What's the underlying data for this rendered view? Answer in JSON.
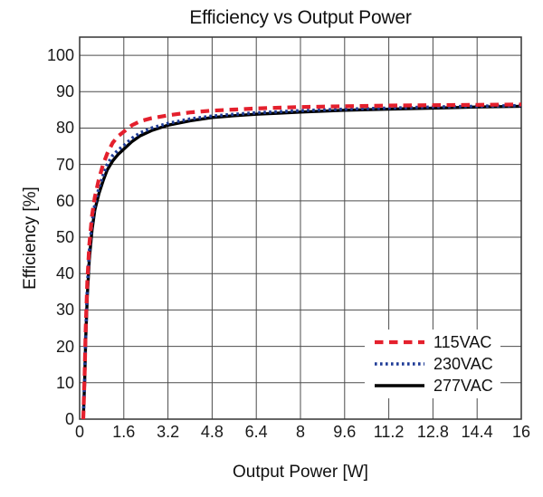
{
  "chart_data": {
    "type": "line",
    "title": "Efficiency vs Output Power",
    "xlabel": "Output Power [W]",
    "ylabel": "Efficiency [%]",
    "xlim": [
      0,
      16
    ],
    "ylim": [
      0,
      100
    ],
    "y_frame_max": 105,
    "grid": true,
    "legend_position": "lower right",
    "x_ticks": [
      "0",
      "1.6",
      "3.2",
      "4.8",
      "6.4",
      "8",
      "9.6",
      "11.2",
      "12.8",
      "14.4",
      "16"
    ],
    "y_ticks": [
      "0",
      "10",
      "20",
      "30",
      "40",
      "50",
      "60",
      "70",
      "80",
      "90",
      "100"
    ],
    "colors": {
      "grid": "#4c4c4c",
      "frame": "#333333",
      "red_115vac": "#e4202d",
      "blue_230vac": "#1e3b96",
      "black_277vac": "#000000"
    },
    "series": [
      {
        "name": "115VAC",
        "color": "#e4202d",
        "dash": "9.5 6.5",
        "width": 4.2,
        "points": [
          [
            0.13,
            0
          ],
          [
            0.18,
            12
          ],
          [
            0.22,
            25
          ],
          [
            0.28,
            38
          ],
          [
            0.35,
            48
          ],
          [
            0.45,
            56
          ],
          [
            0.55,
            61
          ],
          [
            0.7,
            66
          ],
          [
            0.85,
            70
          ],
          [
            1.0,
            73
          ],
          [
            1.2,
            76
          ],
          [
            1.4,
            77.8
          ],
          [
            1.6,
            79
          ],
          [
            1.9,
            80.8
          ],
          [
            2.2,
            81.9
          ],
          [
            2.6,
            82.7
          ],
          [
            3.2,
            83.5
          ],
          [
            4.0,
            84.3
          ],
          [
            4.8,
            84.8
          ],
          [
            5.6,
            85.1
          ],
          [
            6.4,
            85.4
          ],
          [
            7.2,
            85.6
          ],
          [
            8.0,
            85.8
          ],
          [
            9.6,
            86.0
          ],
          [
            11.2,
            86.2
          ],
          [
            12.8,
            86.3
          ],
          [
            14.4,
            86.4
          ],
          [
            16,
            86.5
          ]
        ]
      },
      {
        "name": "230VAC",
        "color": "#1e3b96",
        "dash": "2.6 3.4",
        "width": 3.6,
        "points": [
          [
            0.13,
            0
          ],
          [
            0.18,
            11
          ],
          [
            0.22,
            23
          ],
          [
            0.28,
            36
          ],
          [
            0.35,
            46
          ],
          [
            0.45,
            54
          ],
          [
            0.55,
            59
          ],
          [
            0.7,
            63.5
          ],
          [
            0.85,
            67
          ],
          [
            1.0,
            70
          ],
          [
            1.2,
            72.5
          ],
          [
            1.4,
            74
          ],
          [
            1.6,
            75.2
          ],
          [
            1.9,
            77.2
          ],
          [
            2.2,
            78.7
          ],
          [
            2.6,
            80
          ],
          [
            3.2,
            81.3
          ],
          [
            4.0,
            82.5
          ],
          [
            4.8,
            83.3
          ],
          [
            5.6,
            83.8
          ],
          [
            6.4,
            84.2
          ],
          [
            7.2,
            84.5
          ],
          [
            8.0,
            84.8
          ],
          [
            9.6,
            85.2
          ],
          [
            11.2,
            85.5
          ],
          [
            12.8,
            85.8
          ],
          [
            14.4,
            86.0
          ],
          [
            16,
            86.2
          ]
        ]
      },
      {
        "name": "277VAC",
        "color": "#000000",
        "dash": "",
        "width": 3.4,
        "points": [
          [
            0.13,
            0
          ],
          [
            0.18,
            10
          ],
          [
            0.22,
            22
          ],
          [
            0.28,
            34
          ],
          [
            0.35,
            44
          ],
          [
            0.45,
            52
          ],
          [
            0.55,
            57.5
          ],
          [
            0.7,
            62
          ],
          [
            0.85,
            65.5
          ],
          [
            1.0,
            68.5
          ],
          [
            1.2,
            71
          ],
          [
            1.4,
            72.8
          ],
          [
            1.6,
            74.2
          ],
          [
            1.9,
            76.3
          ],
          [
            2.2,
            77.9
          ],
          [
            2.6,
            79.3
          ],
          [
            3.2,
            80.8
          ],
          [
            4.0,
            82.0
          ],
          [
            4.8,
            82.9
          ],
          [
            5.6,
            83.4
          ],
          [
            6.4,
            83.8
          ],
          [
            7.2,
            84.1
          ],
          [
            8.0,
            84.4
          ],
          [
            9.6,
            84.9
          ],
          [
            11.2,
            85.2
          ],
          [
            12.8,
            85.5
          ],
          [
            14.4,
            85.8
          ],
          [
            16,
            86.0
          ]
        ]
      }
    ]
  }
}
